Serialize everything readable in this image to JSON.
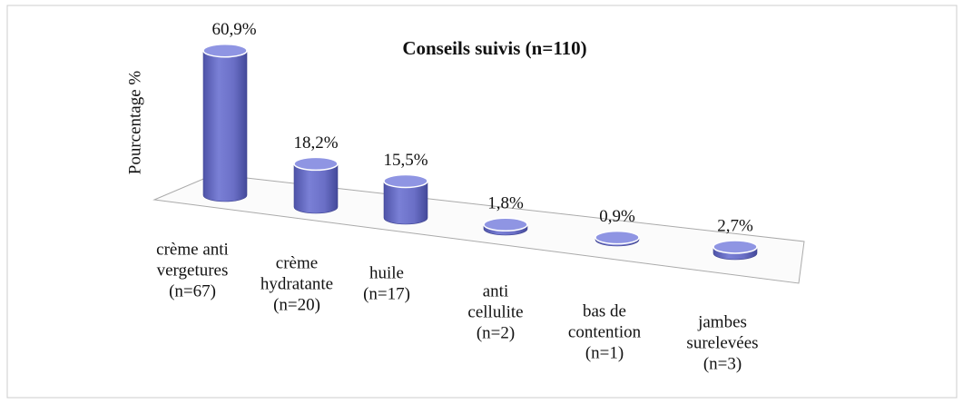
{
  "chart_data": {
    "type": "bar3d",
    "title": "Conseils suivis (n=110)",
    "y_label": "Pourcentage %",
    "categories": [
      [
        "crème anti",
        "vergetures",
        "(n=67)"
      ],
      [
        "crème",
        "hydratante",
        "(n=20)"
      ],
      [
        "huile",
        "(n=17)"
      ],
      [
        "anti",
        "cellulite",
        "(n=2)"
      ],
      [
        "bas de",
        "contention",
        "(n=1)"
      ],
      [
        "jambes",
        "surelevées",
        "(n=3)"
      ]
    ],
    "values": [
      60.9,
      18.2,
      15.5,
      1.8,
      0.9,
      2.7
    ],
    "value_labels": [
      "60,9%",
      "18,2%",
      "15,5%",
      "1,8%",
      "0,9%",
      "2,7%"
    ],
    "color": "#6b70c8",
    "ylim": [
      0,
      65
    ]
  }
}
